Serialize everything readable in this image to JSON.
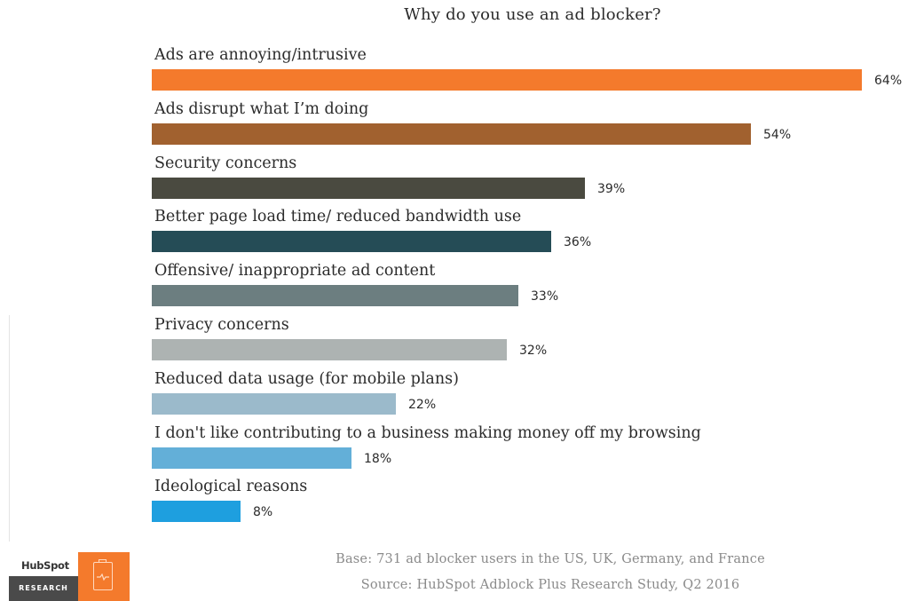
{
  "chart_data": {
    "type": "bar",
    "orientation": "horizontal",
    "title": "Why do you use an ad blocker?",
    "value_suffix": "%",
    "xlim": [
      0,
      64
    ],
    "grid": false,
    "legend": "none",
    "categories": [
      "Ads are annoying/intrusive",
      "Ads disrupt what I’m doing",
      "Security concerns",
      "Better page load time/ reduced bandwidth use",
      "Offensive/ inappropriate ad content",
      "Privacy concerns",
      "Reduced data usage (for mobile plans)",
      "I don't like contributing to a business making money off my browsing",
      "Ideological reasons"
    ],
    "values": [
      64,
      54,
      39,
      36,
      33,
      32,
      22,
      18,
      8
    ],
    "colors": [
      "#f47a2c",
      "#a1612f",
      "#4a4a40",
      "#254c56",
      "#6c7e80",
      "#adb3b2",
      "#9bbacb",
      "#63afd8",
      "#1e9fdf"
    ],
    "value_labels": [
      "64%",
      "54%",
      "39%",
      "36%",
      "33%",
      "32%",
      "22%",
      "18%",
      "8%"
    ]
  },
  "footer": {
    "base": "Base: 731 ad blocker users in the US, UK, Germany, and France",
    "source": "Source: HubSpot Adblock Plus Research Study, Q2 2016"
  },
  "logo": {
    "brand": "HubSpot",
    "subbrand": "RESEARCH",
    "icon": "document-pulse-icon",
    "accent": "#f47a2c"
  }
}
